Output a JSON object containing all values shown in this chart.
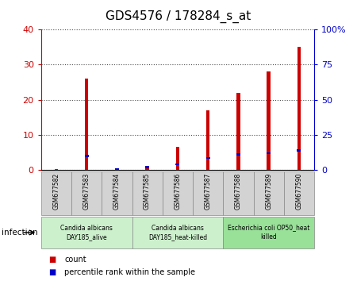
{
  "title": "GDS4576 / 178284_s_at",
  "samples": [
    "GSM677582",
    "GSM677583",
    "GSM677584",
    "GSM677585",
    "GSM677586",
    "GSM677587",
    "GSM677588",
    "GSM677589",
    "GSM677590"
  ],
  "counts": [
    0.3,
    26,
    0.4,
    1.0,
    6.5,
    17,
    22,
    28,
    35
  ],
  "percentile_ranks": [
    0.0,
    10,
    0.3,
    2.0,
    4.0,
    8.5,
    11,
    12,
    14
  ],
  "ylim_left": [
    0,
    40
  ],
  "ylim_right": [
    0,
    100
  ],
  "yticks_left": [
    0,
    10,
    20,
    30,
    40
  ],
  "yticks_right": [
    0,
    25,
    50,
    75,
    100
  ],
  "count_color": "#cc0000",
  "percentile_color": "#0000cc",
  "groups": [
    {
      "label": "Candida albicans\nDAY185_alive",
      "start": 0,
      "end": 3
    },
    {
      "label": "Candida albicans\nDAY185_heat-killed",
      "start": 3,
      "end": 6
    },
    {
      "label": "Escherichia coli OP50_heat\nkilled",
      "start": 6,
      "end": 9
    }
  ],
  "group_bg_colors": [
    "#ccf0cc",
    "#ccf0cc",
    "#99e099"
  ],
  "tick_bg_color": "#d3d3d3",
  "infection_label": "infection",
  "legend_count": "count",
  "legend_percentile": "percentile rank within the sample",
  "bar_width": 0.12
}
